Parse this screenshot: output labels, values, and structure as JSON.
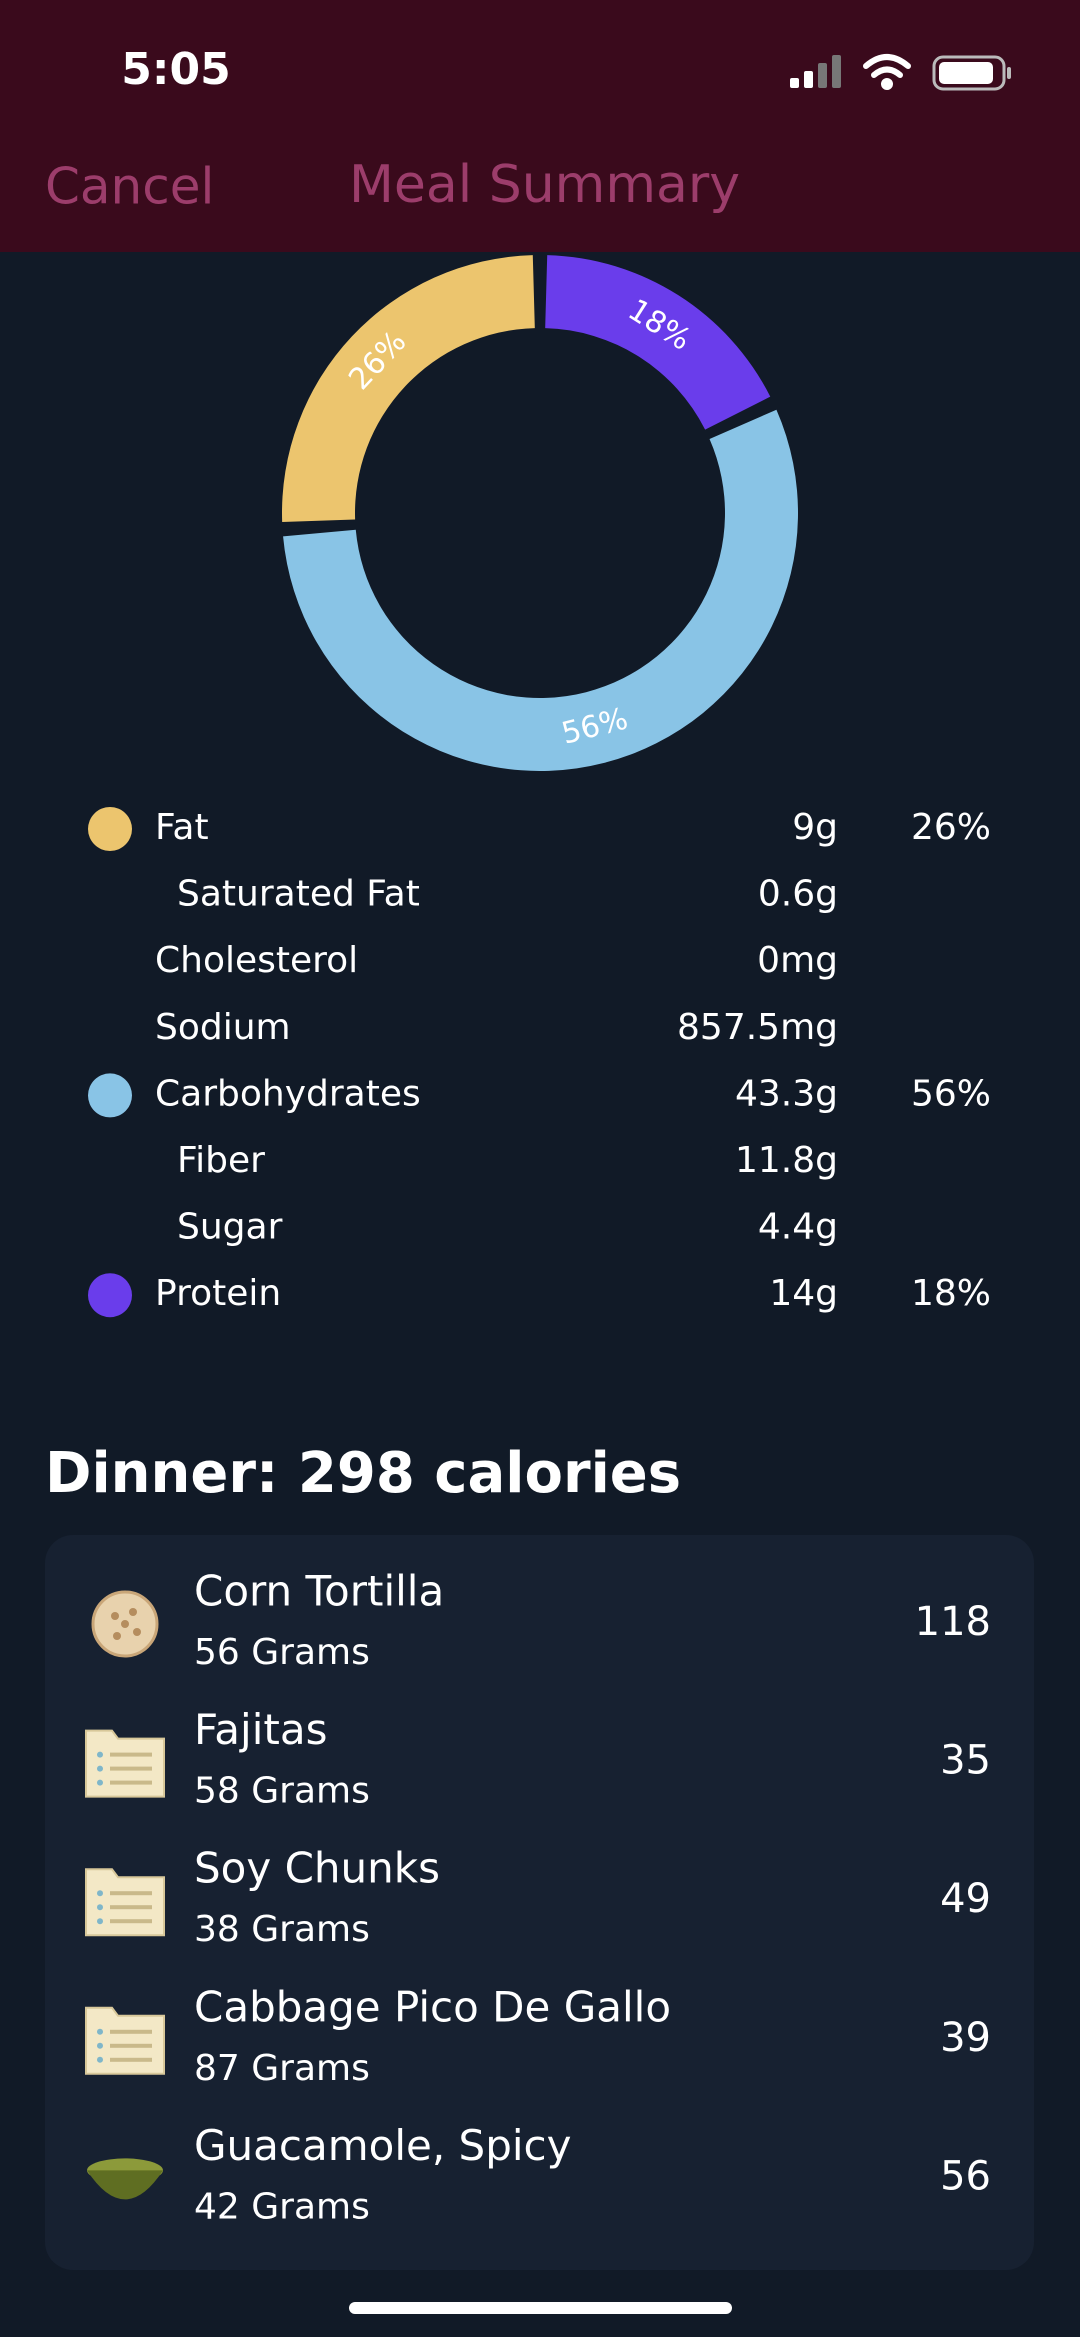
{
  "status_bar": {
    "time": "5:05"
  },
  "nav": {
    "cancel": "Cancel",
    "title": "Meal Summary"
  },
  "chart_data": {
    "type": "pie",
    "donut": true,
    "categories": [
      "Fat",
      "Carbohydrates",
      "Protein"
    ],
    "values": [
      26,
      56,
      18
    ],
    "value_labels": [
      "26%",
      "56%",
      "18%"
    ],
    "colors": [
      "#ecc56e",
      "#89c4e6",
      "#6a3deb"
    ]
  },
  "nutrients": [
    {
      "amount": "9g",
      "details": [
        {
          "name": "Saturated Fat",
          "amount": "0.6g",
          "indent": true
        },
        {
          "name": "Cholesterol",
          "amount": "0mg",
          "indent": false
        },
        {
          "name": "Sodium",
          "amount": "857.5mg",
          "indent": false
        }
      ]
    },
    {
      "amount": "43.3g",
      "details": [
        {
          "name": "Fiber",
          "amount": "11.8g",
          "indent": true
        },
        {
          "name": "Sugar",
          "amount": "4.4g",
          "indent": true
        }
      ]
    },
    {
      "amount": "14g",
      "details": []
    }
  ],
  "meal": {
    "title": "Dinner: 298 calories",
    "items": [
      {
        "name": "Corn Tortilla",
        "amount": "56 Grams",
        "calories": 118
      },
      {
        "name": "Fajitas",
        "amount": "58 Grams",
        "calories": 35
      },
      {
        "name": "Soy Chunks",
        "amount": "38 Grams",
        "calories": 49
      },
      {
        "name": "Cabbage Pico De Gallo",
        "amount": "87 Grams",
        "calories": 39
      },
      {
        "name": "Guacamole, Spicy",
        "amount": "42 Grams",
        "calories": 56
      }
    ]
  }
}
